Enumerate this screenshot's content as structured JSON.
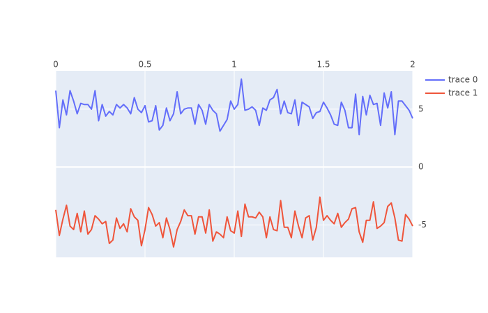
{
  "chart_data": {
    "type": "line",
    "x": [
      0,
      0.02,
      0.04,
      0.06,
      0.08,
      0.1,
      0.12,
      0.14,
      0.16,
      0.18,
      0.2,
      0.22,
      0.24,
      0.26,
      0.28,
      0.3,
      0.32,
      0.34,
      0.36,
      0.38,
      0.4,
      0.42,
      0.44,
      0.46,
      0.48,
      0.5,
      0.52,
      0.54,
      0.56,
      0.58,
      0.6,
      0.62,
      0.64,
      0.66,
      0.68,
      0.7,
      0.72,
      0.74,
      0.76,
      0.78,
      0.8,
      0.82,
      0.84,
      0.86,
      0.88,
      0.9,
      0.92,
      0.94,
      0.96,
      0.98,
      1,
      1.02,
      1.04,
      1.06,
      1.08,
      1.1,
      1.12,
      1.14,
      1.16,
      1.18,
      1.2,
      1.22,
      1.24,
      1.26,
      1.28,
      1.3,
      1.32,
      1.34,
      1.36,
      1.38,
      1.4,
      1.42,
      1.44,
      1.46,
      1.48,
      1.5,
      1.52,
      1.54,
      1.56,
      1.58,
      1.6,
      1.62,
      1.64,
      1.66,
      1.68,
      1.7,
      1.72,
      1.74,
      1.76,
      1.78,
      1.8,
      1.82,
      1.84,
      1.86,
      1.88,
      1.9,
      1.92,
      1.94,
      1.96,
      1.98,
      2
    ],
    "series": [
      {
        "name": "trace 0",
        "color": "#636efa",
        "values": [
          6.6,
          3.4,
          5.8,
          4.5,
          6.6,
          5.7,
          4.6,
          5.5,
          5.4,
          5.4,
          5.0,
          6.6,
          4.0,
          5.4,
          4.4,
          4.8,
          4.5,
          5.4,
          5.1,
          5.4,
          5.1,
          4.6,
          6.0,
          5.0,
          4.7,
          5.3,
          3.9,
          4.0,
          5.3,
          3.2,
          3.6,
          5.1,
          4.0,
          4.6,
          6.5,
          4.6,
          5.0,
          5.1,
          5.1,
          3.7,
          5.4,
          4.9,
          3.7,
          5.4,
          4.9,
          4.6,
          3.1,
          3.6,
          4.1,
          5.7,
          5.0,
          5.4,
          7.6,
          4.9,
          5.0,
          5.2,
          4.9,
          3.6,
          5.1,
          4.9,
          5.8,
          6.0,
          6.7,
          4.6,
          5.7,
          4.7,
          4.6,
          5.8,
          3.6,
          5.6,
          5.4,
          5.2,
          4.2,
          4.7,
          4.8,
          5.6,
          5.1,
          4.5,
          3.7,
          3.6,
          5.6,
          4.9,
          3.4,
          3.4,
          6.3,
          2.8,
          6.1,
          4.5,
          6.2,
          5.4,
          5.5,
          3.6,
          6.4,
          5.1,
          6.5,
          2.8,
          5.7,
          5.7,
          5.3,
          4.9,
          4.2
        ]
      },
      {
        "name": "trace 1",
        "color": "#ef553b",
        "values": [
          -3.7,
          -5.9,
          -4.5,
          -3.3,
          -5.1,
          -5.4,
          -4.0,
          -5.6,
          -3.8,
          -5.8,
          -5.4,
          -4.2,
          -4.5,
          -4.9,
          -4.7,
          -6.6,
          -6.3,
          -4.4,
          -5.3,
          -4.9,
          -5.6,
          -3.6,
          -4.3,
          -4.6,
          -6.8,
          -5.4,
          -3.5,
          -4.1,
          -5.1,
          -4.8,
          -6.1,
          -4.4,
          -5.4,
          -6.9,
          -5.4,
          -4.7,
          -3.7,
          -4.2,
          -4.2,
          -5.8,
          -4.3,
          -4.3,
          -5.7,
          -3.7,
          -6.4,
          -5.6,
          -5.8,
          -6.1,
          -4.3,
          -5.5,
          -5.7,
          -3.8,
          -6.0,
          -3.2,
          -4.3,
          -4.3,
          -4.4,
          -3.9,
          -4.3,
          -6.1,
          -4.3,
          -5.4,
          -5.5,
          -2.9,
          -5.2,
          -5.2,
          -6.1,
          -3.8,
          -5.1,
          -6.1,
          -4.4,
          -4.2,
          -6.3,
          -5.2,
          -2.6,
          -4.6,
          -4.2,
          -4.6,
          -4.9,
          -4.0,
          -5.2,
          -4.8,
          -4.5,
          -3.6,
          -3.5,
          -5.6,
          -6.5,
          -4.6,
          -4.6,
          -3.0,
          -5.3,
          -5.1,
          -4.8,
          -3.4,
          -3.1,
          -4.4,
          -6.3,
          -6.4,
          -4.1,
          -4.5,
          -5.1
        ]
      }
    ],
    "xlim": [
      0,
      2
    ],
    "xticks": [
      0,
      0.5,
      1,
      1.5,
      2
    ],
    "ylim": [
      -7.8,
      8.3
    ],
    "yticks": [
      -5,
      0,
      5
    ],
    "grid": true
  }
}
